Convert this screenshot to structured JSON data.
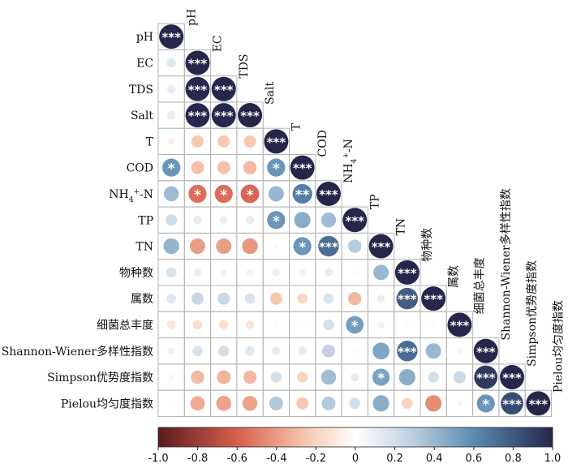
{
  "chart_data": {
    "type": "heatmap",
    "style": "lower-triangle correlation circles",
    "variables": [
      "pH",
      "EC",
      "TDS",
      "Salt",
      "T",
      "COD",
      "NH4+-N",
      "TP",
      "TN",
      "物种数",
      "属数",
      "细菌总丰度",
      "Shannon-Wiener多样性指数",
      "Simpson优势度指数",
      "Pielou均匀度指数"
    ],
    "variables_display": [
      {
        "base": "pH"
      },
      {
        "base": "EC"
      },
      {
        "base": "TDS"
      },
      {
        "base": "Salt"
      },
      {
        "base": "T"
      },
      {
        "base": "COD"
      },
      {
        "base": "NH",
        "sub": "4",
        "sup": "+",
        "tail": "-N"
      },
      {
        "base": "TP"
      },
      {
        "base": "TN"
      },
      {
        "base": "物种数"
      },
      {
        "base": "属数"
      },
      {
        "base": "细菌总丰度"
      },
      {
        "base": "Shannon-Wiener多样性指数"
      },
      {
        "base": "Simpson优势度指数"
      },
      {
        "base": "Pielou均匀度指数"
      }
    ],
    "matrix": [
      [
        1.0
      ],
      [
        0.15,
        1.0
      ],
      [
        0.12,
        0.99,
        1.0
      ],
      [
        0.12,
        0.99,
        0.99,
        1.0
      ],
      [
        -0.08,
        -0.25,
        -0.25,
        -0.25,
        1.0
      ],
      [
        0.55,
        -0.28,
        -0.28,
        -0.3,
        0.55,
        1.0
      ],
      [
        0.38,
        -0.55,
        -0.55,
        -0.58,
        0.4,
        0.65,
        1.0
      ],
      [
        0.22,
        0.12,
        0.1,
        0.12,
        0.55,
        0.45,
        0.38,
        1.0
      ],
      [
        0.42,
        -0.4,
        -0.4,
        -0.42,
        0.03,
        0.55,
        0.72,
        0.3,
        1.0
      ],
      [
        0.18,
        0.1,
        0.08,
        0.08,
        0.1,
        0.08,
        0.12,
        -0.03,
        0.4,
        1.0
      ],
      [
        0.15,
        0.25,
        0.25,
        0.18,
        -0.25,
        -0.18,
        0.18,
        -0.3,
        0.1,
        0.78,
        1.0
      ],
      [
        -0.12,
        -0.15,
        -0.15,
        -0.12,
        -0.03,
        0.02,
        0.2,
        0.52,
        0.08,
        0.03,
        -0.03,
        1.0
      ],
      [
        0.08,
        0.18,
        0.2,
        0.15,
        0.12,
        0.12,
        0.28,
        0.03,
        0.48,
        0.72,
        0.4,
        0.05,
        1.0
      ],
      [
        0.05,
        -0.3,
        -0.32,
        -0.3,
        0.2,
        -0.2,
        0.38,
        0.12,
        0.5,
        0.45,
        0.2,
        0.25,
        0.92,
        1.0
      ],
      [
        0.02,
        -0.35,
        -0.38,
        -0.38,
        0.32,
        -0.25,
        0.32,
        0.2,
        0.45,
        -0.2,
        -0.45,
        0.05,
        0.55,
        0.85,
        1.0
      ]
    ],
    "significance": [
      [
        "***"
      ],
      [
        "",
        "***"
      ],
      [
        "",
        "***",
        "***"
      ],
      [
        "",
        "***",
        "***",
        "***"
      ],
      [
        "",
        "",
        "",
        "",
        "***"
      ],
      [
        "*",
        "",
        "",
        "",
        "*",
        "***"
      ],
      [
        "",
        "*",
        "*",
        "*",
        "",
        "**",
        "***"
      ],
      [
        "",
        "",
        "",
        "",
        "*",
        "",
        "",
        "***"
      ],
      [
        "",
        "",
        "",
        "",
        "",
        "*",
        "***",
        "",
        "***"
      ],
      [
        "",
        "",
        "",
        "",
        "",
        "",
        "",
        "",
        "",
        "***"
      ],
      [
        "",
        "",
        "",
        "",
        "",
        "",
        "",
        "",
        "",
        "***",
        "***"
      ],
      [
        "",
        "",
        "",
        "",
        "",
        "",
        "",
        "*",
        "",
        "",
        "",
        "***"
      ],
      [
        "",
        "",
        "",
        "",
        "",
        "",
        "",
        "",
        "",
        "***",
        "",
        "",
        "***"
      ],
      [
        "",
        "",
        "",
        "",
        "",
        "",
        "",
        "",
        "*",
        "",
        "",
        "",
        "***",
        "***"
      ],
      [
        "",
        "",
        "",
        "",
        "",
        "",
        "",
        "",
        "",
        "",
        "",
        "",
        "*",
        "***",
        "***"
      ]
    ],
    "colorbar": {
      "range": [
        -1.0,
        1.0
      ],
      "tick_values": [
        -1.0,
        -0.8,
        -0.6,
        -0.4,
        -0.2,
        0,
        0.2,
        0.4,
        0.6,
        0.8,
        1.0
      ],
      "tick_labels": [
        "-1.0",
        "-0.8",
        "-0.6",
        "-0.4",
        "-0.2",
        "0",
        "0.2",
        "0.4",
        "0.6",
        "0.8",
        "1.0"
      ],
      "position": "bottom"
    },
    "colors": {
      "neg_strong": "#5a1a1e",
      "neg_mid": "#d6604d",
      "neg_light": "#f7c9b0",
      "zero": "#ffffff",
      "pos_light": "#c8d8e6",
      "pos_mid": "#5b8bb2",
      "pos_strong": "#25264a",
      "grid": "#b5b5b5"
    }
  }
}
